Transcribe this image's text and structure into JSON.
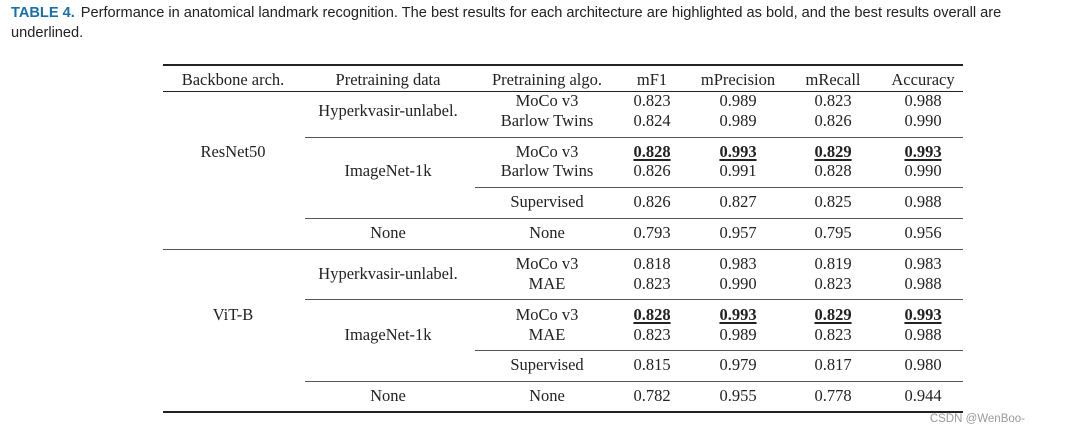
{
  "caption": {
    "label": "TABLE 4.",
    "text": "Performance in anatomical landmark recognition. The best results for each architecture are highlighted as bold, and the best results overall are underlined."
  },
  "table": {
    "headers": [
      "Backbone arch.",
      "Pretraining data",
      "Pretraining algo.",
      "mF1",
      "mPrecision",
      "mRecall",
      "Accuracy"
    ],
    "groups": [
      {
        "backbone": "ResNet50",
        "data_groups": [
          {
            "data": "Hyperkvasir-unlabel.",
            "rows": [
              {
                "algo": "MoCo v3",
                "values": [
                  "0.823",
                  "0.989",
                  "0.823",
                  "0.988"
                ],
                "best": false
              },
              {
                "algo": "Barlow Twins",
                "values": [
                  "0.824",
                  "0.989",
                  "0.826",
                  "0.990"
                ],
                "best": false
              }
            ]
          },
          {
            "data": "ImageNet-1k",
            "rows": [
              {
                "algo": "MoCo v3",
                "values": [
                  "0.828",
                  "0.993",
                  "0.829",
                  "0.993"
                ],
                "best": true
              },
              {
                "algo": "Barlow Twins",
                "values": [
                  "0.826",
                  "0.991",
                  "0.828",
                  "0.990"
                ],
                "best": false
              },
              {
                "algo": "Supervised",
                "values": [
                  "0.826",
                  "0.827",
                  "0.825",
                  "0.988"
                ],
                "best": false
              }
            ]
          },
          {
            "data": "None",
            "rows": [
              {
                "algo": "None",
                "values": [
                  "0.793",
                  "0.957",
                  "0.795",
                  "0.956"
                ],
                "best": false
              }
            ]
          }
        ]
      },
      {
        "backbone": "ViT-B",
        "data_groups": [
          {
            "data": "Hyperkvasir-unlabel.",
            "rows": [
              {
                "algo": "MoCo v3",
                "values": [
                  "0.818",
                  "0.983",
                  "0.819",
                  "0.983"
                ],
                "best": false
              },
              {
                "algo": "MAE",
                "values": [
                  "0.823",
                  "0.990",
                  "0.823",
                  "0.988"
                ],
                "best": false
              }
            ]
          },
          {
            "data": "ImageNet-1k",
            "rows": [
              {
                "algo": "MoCo v3",
                "values": [
                  "0.828",
                  "0.993",
                  "0.829",
                  "0.993"
                ],
                "best": true
              },
              {
                "algo": "MAE",
                "values": [
                  "0.823",
                  "0.989",
                  "0.823",
                  "0.988"
                ],
                "best": false
              },
              {
                "algo": "Supervised",
                "values": [
                  "0.815",
                  "0.979",
                  "0.817",
                  "0.980"
                ],
                "best": false
              }
            ]
          },
          {
            "data": "None",
            "rows": [
              {
                "algo": "None",
                "values": [
                  "0.782",
                  "0.955",
                  "0.778",
                  "0.944"
                ],
                "best": false
              }
            ]
          }
        ]
      }
    ]
  },
  "watermark": "CSDN @WenBoo-"
}
